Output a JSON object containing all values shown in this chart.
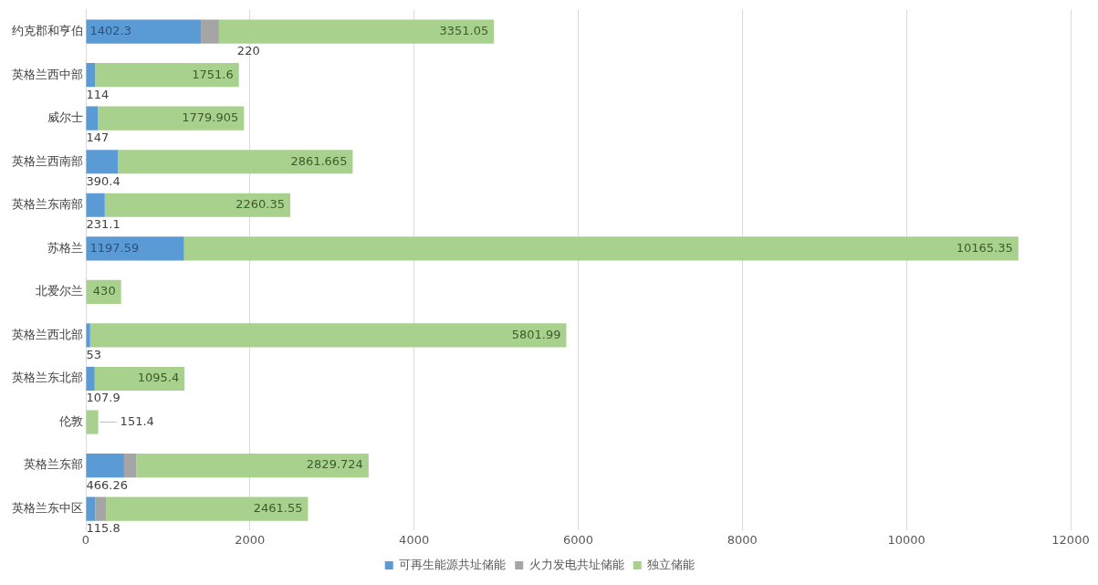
{
  "chart_data": {
    "type": "bar",
    "orientation": "horizontal",
    "stacked": true,
    "categories": [
      "约克郡和亨伯",
      "英格兰西中部",
      "威尔士",
      "英格兰西南部",
      "英格兰东南部",
      "苏格兰",
      "北爱尔兰",
      "英格兰西北部",
      "英格兰东北部",
      "伦敦",
      "英格兰东部",
      "英格兰东中区"
    ],
    "series": [
      {
        "name": "可再生能源共址储能",
        "color": "#5b9bd5",
        "values": [
          1402.3,
          114,
          147,
          390.4,
          231.1,
          1197.59,
          0,
          53,
          107.9,
          0,
          466.26,
          115.8
        ],
        "value_labels": [
          "1402.3",
          "114",
          "147",
          "390.4",
          "231.1",
          "1197.59",
          null,
          "53",
          "107.9",
          null,
          "466.26",
          "115.8"
        ]
      },
      {
        "name": "火力发电共址储能",
        "color": "#a5a5a5",
        "values": [
          220,
          0,
          0,
          0,
          0,
          0,
          0,
          0,
          0,
          0,
          150,
          130
        ],
        "value_labels": [
          "220",
          null,
          null,
          null,
          null,
          null,
          null,
          null,
          null,
          null,
          null,
          null
        ]
      },
      {
        "name": "独立储能",
        "color": "#a9d18e",
        "values": [
          3351.05,
          1751.6,
          1779.905,
          2861.665,
          2260.35,
          10165.35,
          430,
          5801.99,
          1095.4,
          151.4,
          2829.724,
          2461.55
        ],
        "value_labels": [
          "3351.05",
          "1751.6",
          "1779.905",
          "2861.665",
          "2260.35",
          "10165.35",
          "430",
          "5801.99",
          "1095.4",
          "151.4",
          "2829.724",
          "2461.55"
        ]
      }
    ],
    "xlim": [
      0,
      12000
    ],
    "xticks": [
      0,
      2000,
      4000,
      6000,
      8000,
      10000,
      12000
    ],
    "grid": "x",
    "legend": "bottom"
  }
}
